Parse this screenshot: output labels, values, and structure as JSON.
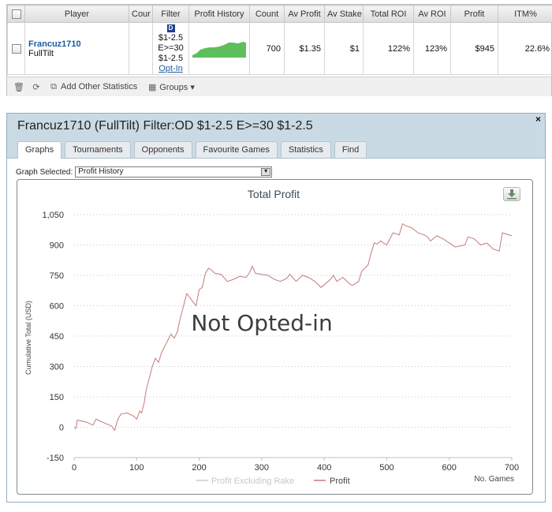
{
  "stats": {
    "columns": [
      "Player",
      "Cour",
      "Filter",
      "Profit History",
      "Count",
      "Av Profit",
      "Av Stake",
      "Total ROI",
      "Av ROI",
      "Profit",
      "ITM%"
    ],
    "row": {
      "player": "Francuz1710",
      "site": "FullTilt",
      "filter_icon": "D",
      "filter_lines": [
        "$1-2.5",
        "E>=30",
        "$1-2.5"
      ],
      "filter_link": "Opt-In",
      "count": "700",
      "av_profit": "$1.35",
      "av_stake": "$1",
      "total_roi": "122%",
      "av_roi": "123%",
      "profit": "$945",
      "itm": "22.6%"
    },
    "footer": {
      "add_stats": "Add Other Statistics",
      "groups": "Groups"
    },
    "mini_chart_color": "#5cbf5c"
  },
  "window": {
    "title": "Francuz1710 (FullTilt) Filter:OD $1-2.5 E>=30 $1-2.5",
    "close_label": "×",
    "tabs": [
      "Graphs",
      "Tournaments",
      "Opponents",
      "Favourite Games",
      "Statistics",
      "Find"
    ],
    "active_tab": 0,
    "graph_selected_label": "Graph Selected:",
    "graph_selected_value": "Profit History"
  },
  "chart_data": {
    "type": "line",
    "title": "Total Profit",
    "xlabel": "No. Games",
    "ylabel": "Cumulative Total (USD)",
    "watermark": "Not Opted-in",
    "xlim": [
      0,
      700
    ],
    "ylim": [
      -150,
      1050
    ],
    "x_ticks": [
      0,
      100,
      200,
      300,
      400,
      500,
      600,
      700
    ],
    "y_ticks": [
      -150,
      0,
      150,
      300,
      450,
      600,
      750,
      900,
      1050
    ],
    "y_tick_labels": [
      "-150",
      "0",
      "150",
      "300",
      "450",
      "600",
      "750",
      "900",
      "1,050"
    ],
    "grid": "horizontal-dotted",
    "legend_position": "bottom",
    "series": [
      {
        "name": "Profit Excluding Rake",
        "color": "#cccccc",
        "x": [],
        "y": []
      },
      {
        "name": "Profit",
        "color": "#c47a7a",
        "x": [
          0,
          3,
          5,
          20,
          30,
          35,
          45,
          60,
          65,
          70,
          75,
          85,
          95,
          100,
          105,
          108,
          112,
          115,
          120,
          125,
          130,
          135,
          140,
          145,
          150,
          155,
          160,
          165,
          170,
          175,
          180,
          185,
          190,
          195,
          200,
          205,
          210,
          215,
          220,
          225,
          235,
          245,
          255,
          265,
          275,
          280,
          285,
          290,
          300,
          310,
          320,
          330,
          340,
          345,
          355,
          365,
          375,
          385,
          395,
          410,
          415,
          420,
          430,
          440,
          445,
          455,
          460,
          470,
          475,
          480,
          485,
          490,
          500,
          510,
          520,
          525,
          530,
          540,
          550,
          560,
          565,
          570,
          580,
          590,
          600,
          610,
          625,
          630,
          640,
          650,
          660,
          670,
          680,
          685,
          690,
          700
        ],
        "y": [
          0,
          -5,
          35,
          25,
          10,
          40,
          25,
          5,
          -15,
          40,
          65,
          70,
          55,
          40,
          80,
          70,
          120,
          180,
          240,
          300,
          340,
          320,
          370,
          400,
          430,
          460,
          440,
          470,
          540,
          600,
          660,
          640,
          620,
          600,
          680,
          690,
          760,
          785,
          775,
          760,
          755,
          720,
          730,
          745,
          740,
          760,
          795,
          760,
          755,
          750,
          730,
          720,
          735,
          755,
          720,
          750,
          740,
          720,
          690,
          730,
          750,
          720,
          740,
          710,
          700,
          720,
          770,
          800,
          860,
          910,
          905,
          920,
          900,
          960,
          950,
          1005,
          995,
          985,
          960,
          950,
          940,
          920,
          945,
          930,
          910,
          890,
          900,
          940,
          930,
          900,
          910,
          880,
          870,
          960,
          955,
          945
        ]
      }
    ]
  }
}
